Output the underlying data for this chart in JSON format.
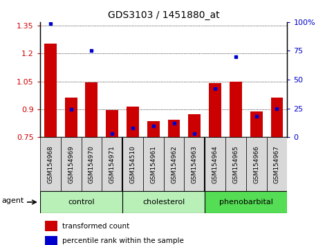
{
  "title": "GDS3103 / 1451880_at",
  "samples": [
    "GSM154968",
    "GSM154969",
    "GSM154970",
    "GSM154971",
    "GSM154510",
    "GSM154961",
    "GSM154962",
    "GSM154963",
    "GSM154964",
    "GSM154965",
    "GSM154966",
    "GSM154967"
  ],
  "groups": [
    {
      "label": "control",
      "color": "#b8f0b8",
      "start": 0,
      "end": 3
    },
    {
      "label": "cholesterol",
      "color": "#b8f0b8",
      "start": 4,
      "end": 7
    },
    {
      "label": "phenobarbital",
      "color": "#55dd55",
      "start": 8,
      "end": 11
    }
  ],
  "bar_bottom": 0.75,
  "transformed_count": [
    1.255,
    0.965,
    1.045,
    0.895,
    0.915,
    0.835,
    0.845,
    0.875,
    1.04,
    1.05,
    0.89,
    0.965
  ],
  "percentile_rank": [
    99,
    24,
    75,
    3,
    8,
    10,
    12,
    3,
    42,
    70,
    18,
    25
  ],
  "ylim_left": [
    0.75,
    1.37
  ],
  "ylim_right": [
    0,
    100
  ],
  "yticks_left": [
    0.75,
    0.9,
    1.05,
    1.2,
    1.35
  ],
  "yticks_right": [
    0,
    25,
    50,
    75,
    100
  ],
  "bar_color": "#cc0000",
  "dot_color": "#0000cc",
  "bg_color": "#ffffff",
  "grid_color": "#000000",
  "tick_label_color_left": "#cc0000",
  "tick_label_color_right": "#0000cc",
  "agent_label": "agent",
  "legend_entries": [
    "transformed count",
    "percentile rank within the sample"
  ],
  "legend_colors": [
    "#cc0000",
    "#0000cc"
  ],
  "sample_box_color": "#d8d8d8"
}
